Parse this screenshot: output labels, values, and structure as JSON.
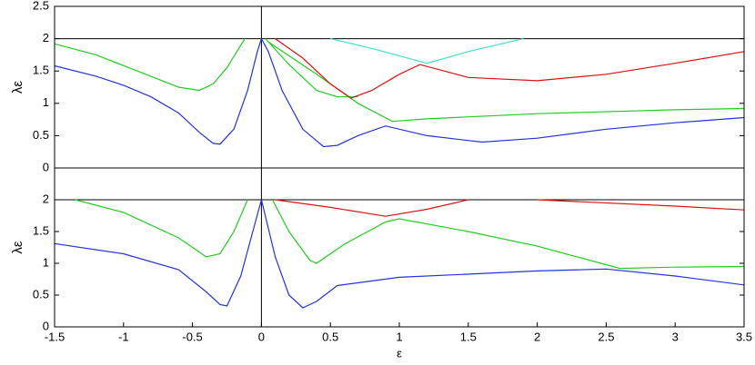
{
  "chart_data": [
    {
      "type": "line",
      "ylabel": "λε",
      "xlim": [
        -1.5,
        3.5
      ],
      "ylim": [
        0,
        2.5
      ],
      "yticks": [
        0,
        0.5,
        1,
        1.5,
        2,
        2.5
      ],
      "hline": 2,
      "vline": 0,
      "series": [
        {
          "color": "#2233dd",
          "x": [
            -1.5,
            -1.2,
            -1.0,
            -0.8,
            -0.6,
            -0.45,
            -0.35,
            -0.3,
            -0.2,
            -0.1,
            -0.03,
            0
          ],
          "values": [
            1.58,
            1.42,
            1.28,
            1.1,
            0.85,
            0.55,
            0.38,
            0.37,
            0.6,
            1.2,
            1.8,
            2
          ]
        },
        {
          "color": "#2233dd",
          "x": [
            0,
            0.05,
            0.15,
            0.3,
            0.45,
            0.55,
            0.7,
            0.9,
            1.2,
            1.6,
            2.0,
            2.5,
            3.0,
            3.5
          ],
          "values": [
            2,
            1.8,
            1.2,
            0.6,
            0.33,
            0.35,
            0.5,
            0.65,
            0.5,
            0.4,
            0.46,
            0.6,
            0.7,
            0.78
          ]
        },
        {
          "color": "#22cc22",
          "x": [
            -1.5,
            -1.2,
            -0.9,
            -0.6,
            -0.45,
            -0.35,
            -0.25,
            -0.15,
            -0.12
          ],
          "values": [
            1.92,
            1.75,
            1.5,
            1.25,
            1.2,
            1.3,
            1.55,
            1.9,
            2
          ]
        },
        {
          "color": "#22cc22",
          "x": [
            0.03,
            0.2,
            0.4,
            0.55,
            0.7
          ],
          "values": [
            2,
            1.6,
            1.2,
            1.1,
            1.1
          ]
        },
        {
          "color": "#22cc22",
          "x": [
            0.05,
            0.4,
            0.7,
            0.95,
            1.2,
            2.0,
            3.0,
            3.5
          ],
          "values": [
            1.95,
            1.45,
            1.0,
            0.72,
            0.76,
            0.84,
            0.9,
            0.92
          ]
        },
        {
          "color": "#dd1111",
          "x": [
            0.1,
            0.3,
            0.5,
            0.65,
            0.8,
            1.0,
            1.15,
            1.5,
            2.0,
            2.5,
            3.0,
            3.5
          ],
          "values": [
            2,
            1.7,
            1.3,
            1.08,
            1.2,
            1.45,
            1.6,
            1.4,
            1.35,
            1.45,
            1.62,
            1.8
          ]
        },
        {
          "color": "#40e0d0",
          "x": [
            0.5,
            0.8,
            1.2,
            1.5,
            1.9
          ],
          "values": [
            2,
            1.85,
            1.62,
            1.8,
            2
          ]
        }
      ]
    },
    {
      "type": "line",
      "ylabel": "λε",
      "xlabel": "ε",
      "xlim": [
        -1.5,
        3.5
      ],
      "ylim": [
        0,
        2.5
      ],
      "xticks": [
        -1.5,
        -1,
        -0.5,
        0,
        0.5,
        1,
        1.5,
        2,
        2.5,
        3,
        3.5
      ],
      "yticks": [
        0,
        0.5,
        1,
        1.5,
        2
      ],
      "hline": 2,
      "vline": 0,
      "series": [
        {
          "color": "#2233dd",
          "x": [
            -1.5,
            -1.0,
            -0.6,
            -0.4,
            -0.3,
            -0.25,
            -0.15,
            -0.05,
            0
          ],
          "values": [
            1.31,
            1.15,
            0.9,
            0.55,
            0.35,
            0.33,
            0.8,
            1.6,
            2
          ]
        },
        {
          "color": "#2233dd",
          "x": [
            0,
            0.1,
            0.2,
            0.3,
            0.4,
            0.55,
            1.0,
            2.0,
            2.5,
            3.0,
            3.5
          ],
          "values": [
            2,
            1.1,
            0.5,
            0.3,
            0.4,
            0.65,
            0.78,
            0.88,
            0.91,
            0.8,
            0.66
          ]
        },
        {
          "color": "#22cc22",
          "x": [
            -1.35,
            -1.0,
            -0.6,
            -0.4,
            -0.3,
            -0.2,
            -0.1
          ],
          "values": [
            2,
            1.8,
            1.4,
            1.1,
            1.15,
            1.5,
            2
          ]
        },
        {
          "color": "#22cc22",
          "x": [
            0.08,
            0.2,
            0.35,
            0.4,
            0.6,
            0.9,
            1.0,
            1.5,
            2.0,
            2.6,
            3.0,
            3.5
          ],
          "values": [
            2,
            1.5,
            1.05,
            1.0,
            1.3,
            1.65,
            1.7,
            1.5,
            1.27,
            0.92,
            0.94,
            0.95
          ]
        },
        {
          "color": "#dd1111",
          "x": [
            0.1,
            0.5,
            0.9,
            1.2,
            1.5
          ],
          "values": [
            2,
            1.88,
            1.74,
            1.85,
            2
          ]
        },
        {
          "color": "#dd1111",
          "x": [
            2.0,
            3.0,
            3.5
          ],
          "values": [
            2,
            1.9,
            1.84
          ]
        }
      ]
    }
  ]
}
